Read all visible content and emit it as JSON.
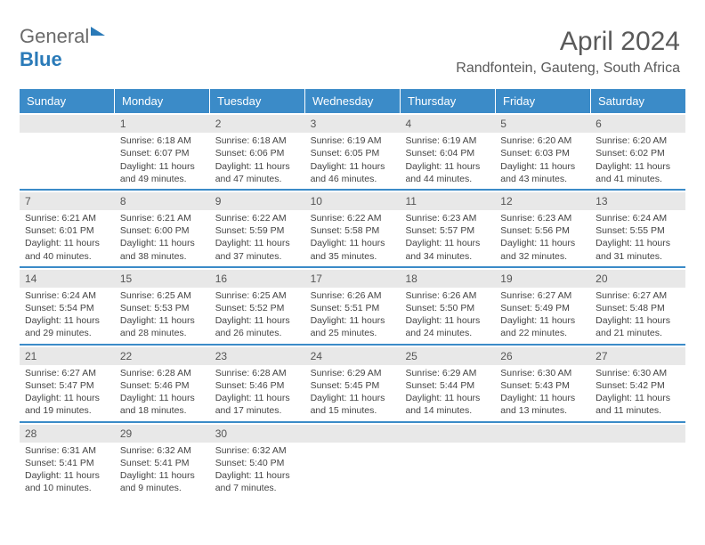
{
  "brand": {
    "part1": "General",
    "part2": "Blue"
  },
  "title": "April 2024",
  "subtitle": "Randfontein, Gauteng, South Africa",
  "colors": {
    "header_bg": "#3b8bc8",
    "header_text": "#ffffff",
    "daynum_bg": "#e8e8e8",
    "text": "#444444",
    "title_color": "#5a5a5a",
    "rule": "#3b8bc8"
  },
  "day_headers": [
    "Sunday",
    "Monday",
    "Tuesday",
    "Wednesday",
    "Thursday",
    "Friday",
    "Saturday"
  ],
  "weeks": [
    [
      {
        "n": "",
        "sr": "",
        "ss": "",
        "dl": ""
      },
      {
        "n": "1",
        "sr": "Sunrise: 6:18 AM",
        "ss": "Sunset: 6:07 PM",
        "dl": "Daylight: 11 hours and 49 minutes."
      },
      {
        "n": "2",
        "sr": "Sunrise: 6:18 AM",
        "ss": "Sunset: 6:06 PM",
        "dl": "Daylight: 11 hours and 47 minutes."
      },
      {
        "n": "3",
        "sr": "Sunrise: 6:19 AM",
        "ss": "Sunset: 6:05 PM",
        "dl": "Daylight: 11 hours and 46 minutes."
      },
      {
        "n": "4",
        "sr": "Sunrise: 6:19 AM",
        "ss": "Sunset: 6:04 PM",
        "dl": "Daylight: 11 hours and 44 minutes."
      },
      {
        "n": "5",
        "sr": "Sunrise: 6:20 AM",
        "ss": "Sunset: 6:03 PM",
        "dl": "Daylight: 11 hours and 43 minutes."
      },
      {
        "n": "6",
        "sr": "Sunrise: 6:20 AM",
        "ss": "Sunset: 6:02 PM",
        "dl": "Daylight: 11 hours and 41 minutes."
      }
    ],
    [
      {
        "n": "7",
        "sr": "Sunrise: 6:21 AM",
        "ss": "Sunset: 6:01 PM",
        "dl": "Daylight: 11 hours and 40 minutes."
      },
      {
        "n": "8",
        "sr": "Sunrise: 6:21 AM",
        "ss": "Sunset: 6:00 PM",
        "dl": "Daylight: 11 hours and 38 minutes."
      },
      {
        "n": "9",
        "sr": "Sunrise: 6:22 AM",
        "ss": "Sunset: 5:59 PM",
        "dl": "Daylight: 11 hours and 37 minutes."
      },
      {
        "n": "10",
        "sr": "Sunrise: 6:22 AM",
        "ss": "Sunset: 5:58 PM",
        "dl": "Daylight: 11 hours and 35 minutes."
      },
      {
        "n": "11",
        "sr": "Sunrise: 6:23 AM",
        "ss": "Sunset: 5:57 PM",
        "dl": "Daylight: 11 hours and 34 minutes."
      },
      {
        "n": "12",
        "sr": "Sunrise: 6:23 AM",
        "ss": "Sunset: 5:56 PM",
        "dl": "Daylight: 11 hours and 32 minutes."
      },
      {
        "n": "13",
        "sr": "Sunrise: 6:24 AM",
        "ss": "Sunset: 5:55 PM",
        "dl": "Daylight: 11 hours and 31 minutes."
      }
    ],
    [
      {
        "n": "14",
        "sr": "Sunrise: 6:24 AM",
        "ss": "Sunset: 5:54 PM",
        "dl": "Daylight: 11 hours and 29 minutes."
      },
      {
        "n": "15",
        "sr": "Sunrise: 6:25 AM",
        "ss": "Sunset: 5:53 PM",
        "dl": "Daylight: 11 hours and 28 minutes."
      },
      {
        "n": "16",
        "sr": "Sunrise: 6:25 AM",
        "ss": "Sunset: 5:52 PM",
        "dl": "Daylight: 11 hours and 26 minutes."
      },
      {
        "n": "17",
        "sr": "Sunrise: 6:26 AM",
        "ss": "Sunset: 5:51 PM",
        "dl": "Daylight: 11 hours and 25 minutes."
      },
      {
        "n": "18",
        "sr": "Sunrise: 6:26 AM",
        "ss": "Sunset: 5:50 PM",
        "dl": "Daylight: 11 hours and 24 minutes."
      },
      {
        "n": "19",
        "sr": "Sunrise: 6:27 AM",
        "ss": "Sunset: 5:49 PM",
        "dl": "Daylight: 11 hours and 22 minutes."
      },
      {
        "n": "20",
        "sr": "Sunrise: 6:27 AM",
        "ss": "Sunset: 5:48 PM",
        "dl": "Daylight: 11 hours and 21 minutes."
      }
    ],
    [
      {
        "n": "21",
        "sr": "Sunrise: 6:27 AM",
        "ss": "Sunset: 5:47 PM",
        "dl": "Daylight: 11 hours and 19 minutes."
      },
      {
        "n": "22",
        "sr": "Sunrise: 6:28 AM",
        "ss": "Sunset: 5:46 PM",
        "dl": "Daylight: 11 hours and 18 minutes."
      },
      {
        "n": "23",
        "sr": "Sunrise: 6:28 AM",
        "ss": "Sunset: 5:46 PM",
        "dl": "Daylight: 11 hours and 17 minutes."
      },
      {
        "n": "24",
        "sr": "Sunrise: 6:29 AM",
        "ss": "Sunset: 5:45 PM",
        "dl": "Daylight: 11 hours and 15 minutes."
      },
      {
        "n": "25",
        "sr": "Sunrise: 6:29 AM",
        "ss": "Sunset: 5:44 PM",
        "dl": "Daylight: 11 hours and 14 minutes."
      },
      {
        "n": "26",
        "sr": "Sunrise: 6:30 AM",
        "ss": "Sunset: 5:43 PM",
        "dl": "Daylight: 11 hours and 13 minutes."
      },
      {
        "n": "27",
        "sr": "Sunrise: 6:30 AM",
        "ss": "Sunset: 5:42 PM",
        "dl": "Daylight: 11 hours and 11 minutes."
      }
    ],
    [
      {
        "n": "28",
        "sr": "Sunrise: 6:31 AM",
        "ss": "Sunset: 5:41 PM",
        "dl": "Daylight: 11 hours and 10 minutes."
      },
      {
        "n": "29",
        "sr": "Sunrise: 6:32 AM",
        "ss": "Sunset: 5:41 PM",
        "dl": "Daylight: 11 hours and 9 minutes."
      },
      {
        "n": "30",
        "sr": "Sunrise: 6:32 AM",
        "ss": "Sunset: 5:40 PM",
        "dl": "Daylight: 11 hours and 7 minutes."
      },
      {
        "n": "",
        "sr": "",
        "ss": "",
        "dl": ""
      },
      {
        "n": "",
        "sr": "",
        "ss": "",
        "dl": ""
      },
      {
        "n": "",
        "sr": "",
        "ss": "",
        "dl": ""
      },
      {
        "n": "",
        "sr": "",
        "ss": "",
        "dl": ""
      }
    ]
  ]
}
